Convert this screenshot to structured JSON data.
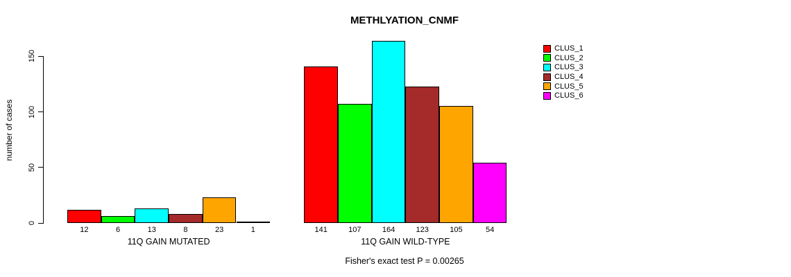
{
  "chart_data": {
    "type": "bar",
    "title": "METHLYATION_CNMF",
    "ylabel": "number of cases",
    "xlabel": "",
    "caption": "Fisher's exact test P = 0.00265",
    "ylim": [
      0,
      164
    ],
    "yticks": [
      0,
      50,
      100,
      150
    ],
    "grid": false,
    "legend_position": "right",
    "categories": [
      "11Q GAIN MUTATED",
      "11Q GAIN WILD-TYPE"
    ],
    "series": [
      {
        "name": "CLUS_1",
        "color": "#ff0000",
        "values": [
          12,
          141
        ]
      },
      {
        "name": "CLUS_2",
        "color": "#00ff00",
        "values": [
          6,
          107
        ]
      },
      {
        "name": "CLUS_3",
        "color": "#00ffff",
        "values": [
          13,
          164
        ]
      },
      {
        "name": "CLUS_4",
        "color": "#a52a2a",
        "values": [
          8,
          123
        ]
      },
      {
        "name": "CLUS_5",
        "color": "#ffa500",
        "values": [
          23,
          105
        ]
      },
      {
        "name": "CLUS_6",
        "color": "#ff00ff",
        "values": [
          1,
          54
        ]
      }
    ]
  }
}
